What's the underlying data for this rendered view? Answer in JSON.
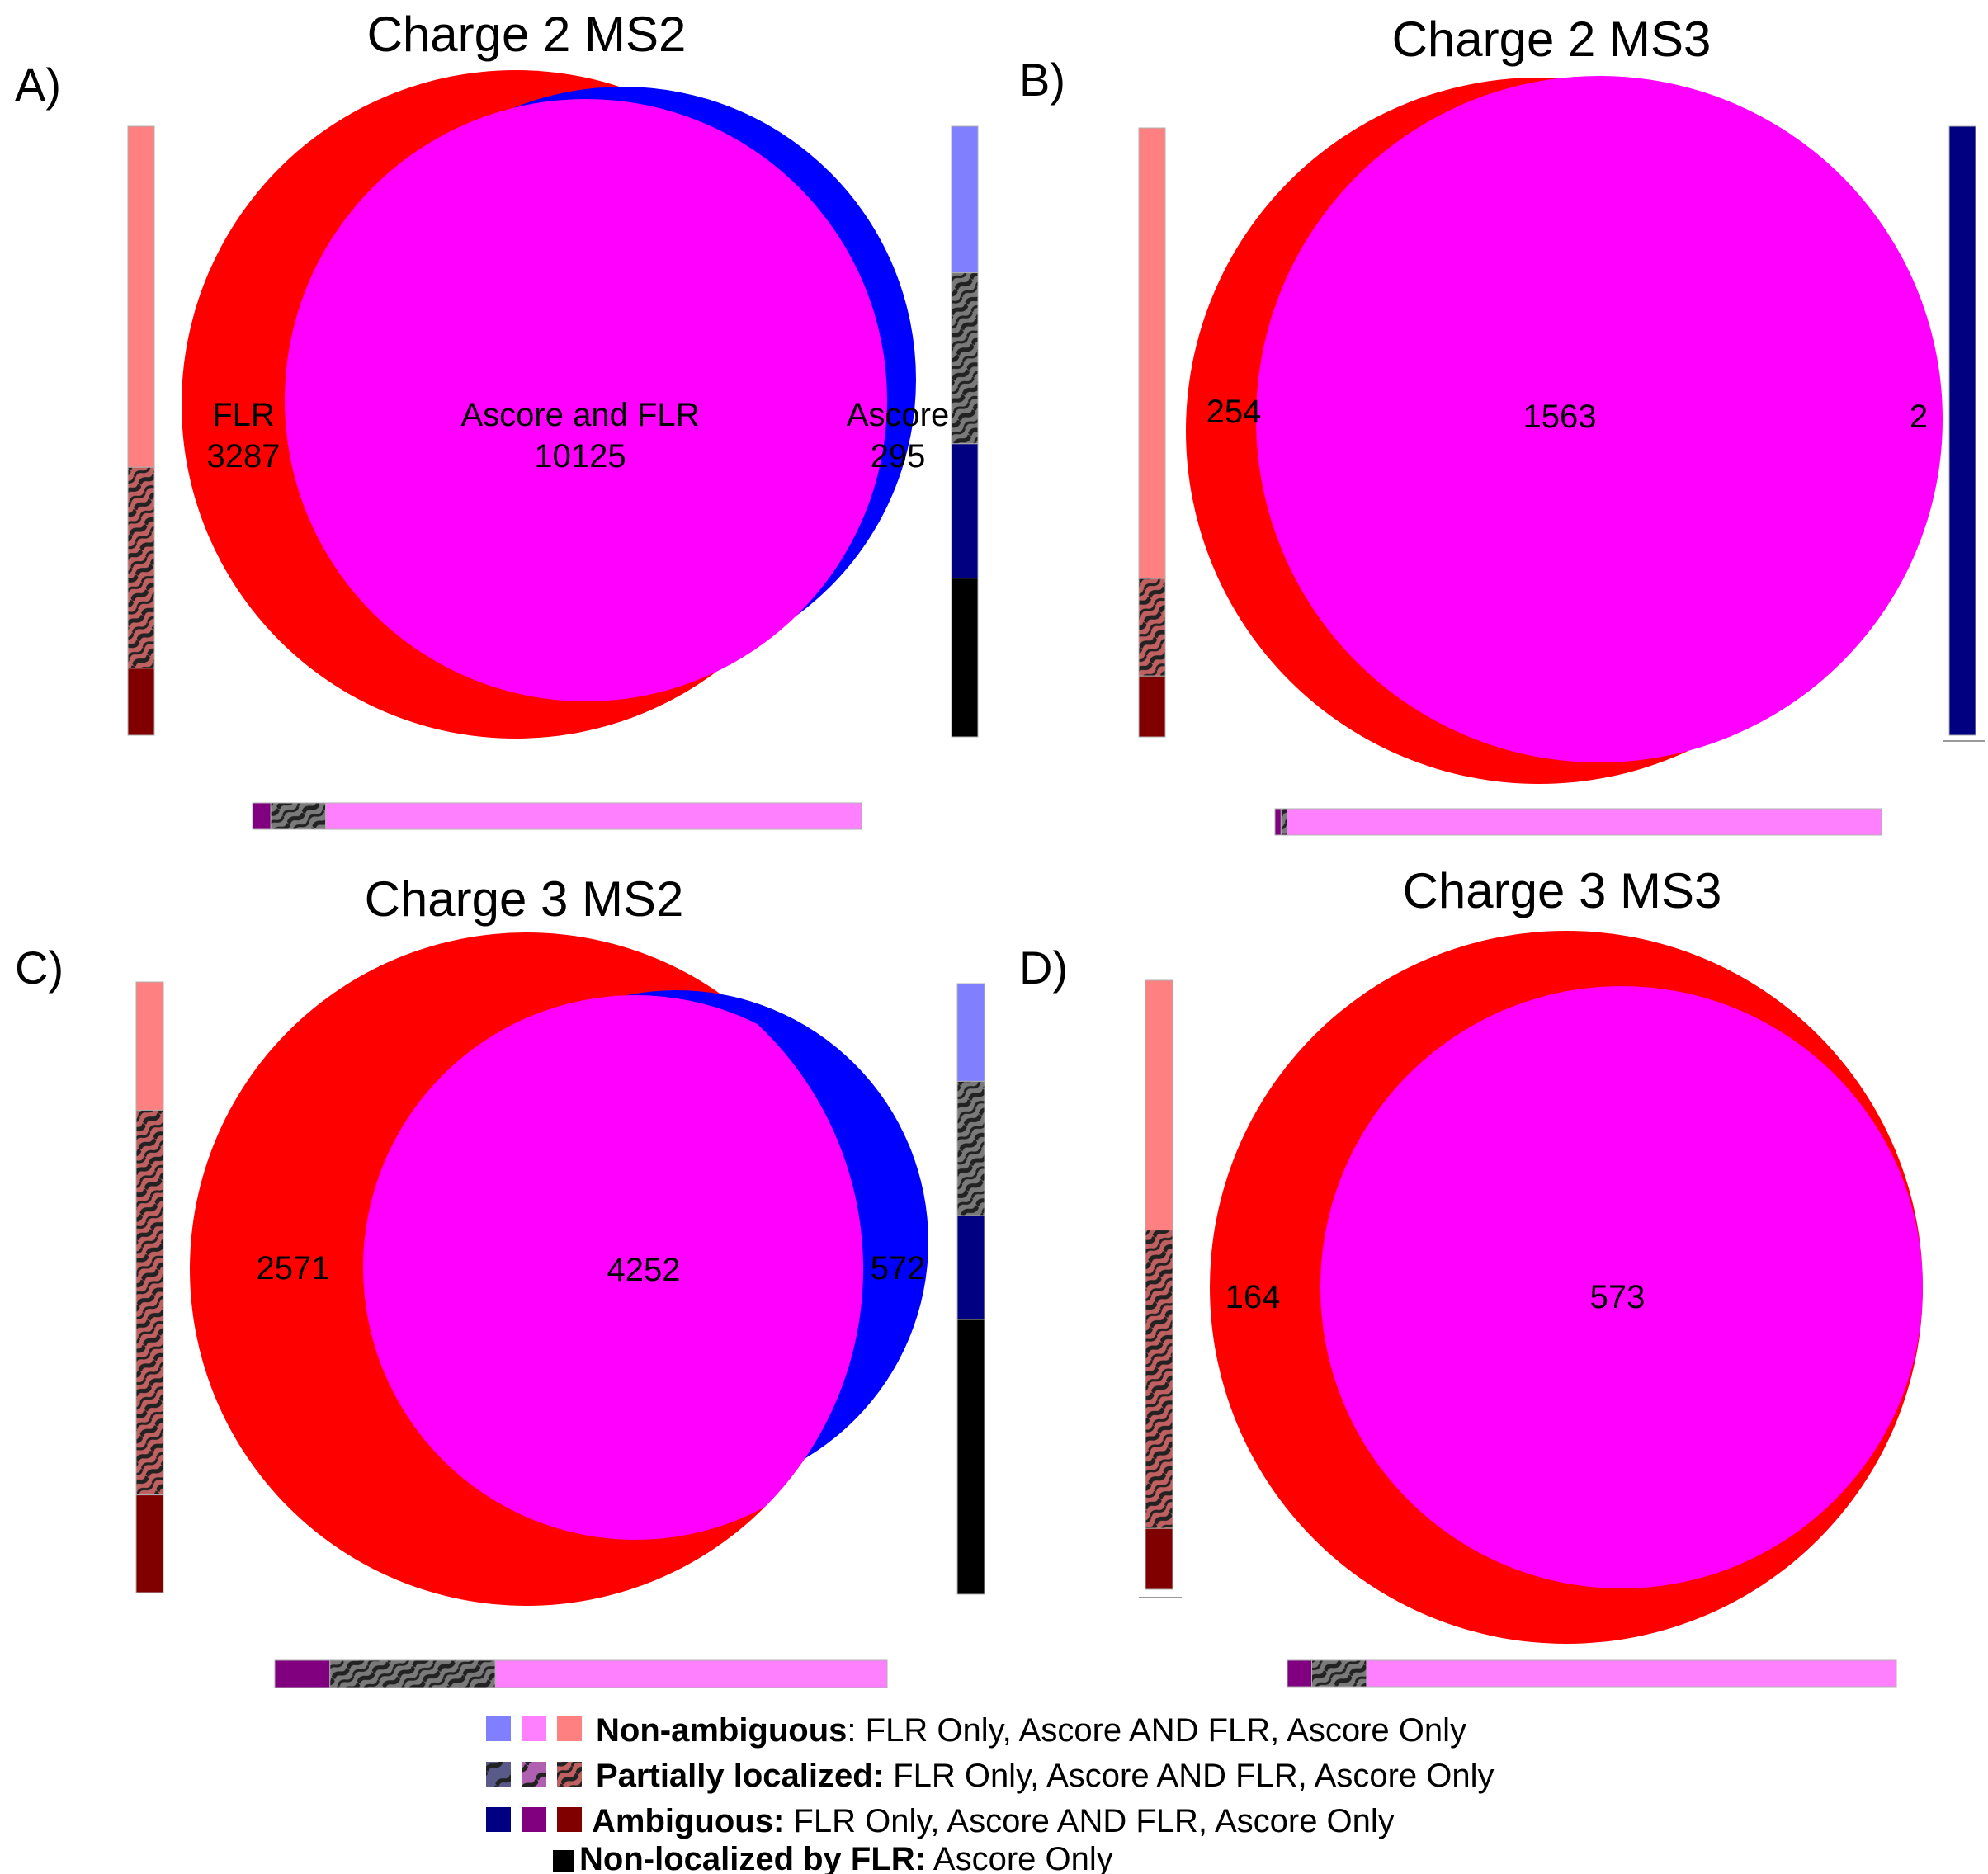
{
  "colors": {
    "flr_only": "#ff0000",
    "ascore_only": "#0000ff",
    "overlap": "#ff00ff",
    "nonamb_flr": "#ff8080",
    "nonamb_both": "#ff80ff",
    "nonamb_ascore": "#8080ff",
    "amb_flr": "#800000",
    "amb_both": "#800080",
    "amb_ascore": "#000080",
    "nonlocalized": "#000000",
    "hatch_bg": "#7a7a7a",
    "hatch_line": "#222222"
  },
  "panels": [
    {
      "letter": "A)",
      "title": "Charge 2 MS2",
      "flr_label": "FLR",
      "flr_count": "3287",
      "both_label": "Ascore and FLR",
      "both_count": "10125",
      "ascore_label": "Ascore",
      "ascore_count": "295",
      "flr_bar": [
        0.56,
        0.33,
        0.11
      ],
      "ascore_bar": [
        0.24,
        0.28,
        0.22,
        0.26
      ],
      "both_bar": [
        0.03,
        0.09,
        0.88
      ]
    },
    {
      "letter": "B)",
      "title": "Charge 2 MS3",
      "flr_label": "",
      "flr_count": "254",
      "both_label": "",
      "both_count": "1563",
      "ascore_label": "",
      "ascore_count": "2",
      "flr_bar": [
        0.74,
        0.16,
        0.1
      ],
      "ascore_bar": [
        0.0,
        0.0,
        1.0,
        0.0
      ],
      "both_bar": [
        0.01,
        0.01,
        0.98
      ]
    },
    {
      "letter": "C)",
      "title": "Charge 3 MS2",
      "flr_label": "",
      "flr_count": "2571",
      "both_label": "",
      "both_count": "4252",
      "ascore_label": "",
      "ascore_count": "572",
      "flr_bar": [
        0.21,
        0.63,
        0.16
      ],
      "ascore_bar": [
        0.16,
        0.22,
        0.17,
        0.45
      ],
      "both_bar": [
        0.09,
        0.27,
        0.64
      ]
    },
    {
      "letter": "D)",
      "title": "Charge 3 MS3",
      "flr_label": "",
      "flr_count": "164",
      "both_label": "",
      "both_count": "573",
      "ascore_label": "",
      "ascore_count": "",
      "flr_bar": [
        0.41,
        0.49,
        0.1
      ],
      "ascore_bar": [],
      "both_bar": [
        0.04,
        0.09,
        0.87
      ]
    }
  ],
  "legend": [
    {
      "bold": "Non-ambiguous",
      "sep": ":",
      "rest": " FLR Only, Ascore AND FLR, Ascore Only"
    },
    {
      "bold": "Partially localized:",
      "sep": "",
      "rest": " FLR Only, Ascore AND FLR, Ascore Only"
    },
    {
      "bold": "Ambiguous:",
      "sep": "",
      "rest": " FLR Only, Ascore AND FLR, Ascore Only"
    },
    {
      "bold": "Non-localized by FLR:",
      "sep": "",
      "rest": " Ascore Only"
    }
  ]
}
